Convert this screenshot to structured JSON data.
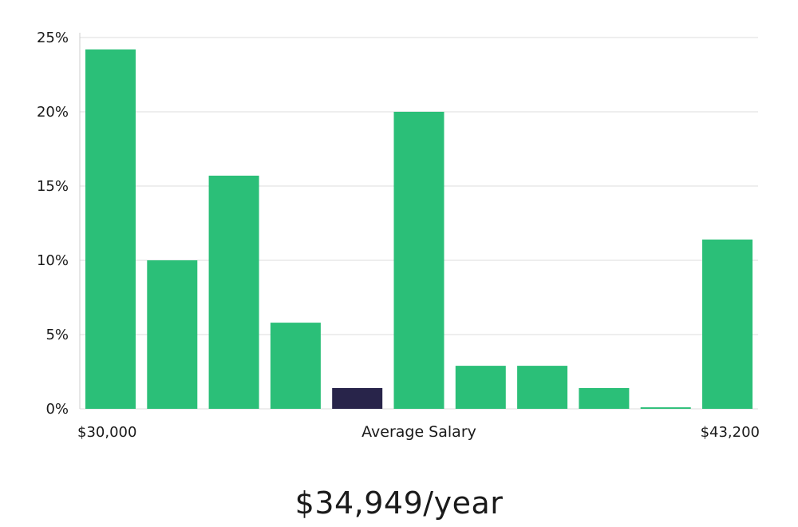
{
  "chart_data": {
    "type": "bar",
    "title": "",
    "xlabel": "Average Salary",
    "ylabel": "",
    "ylim": [
      0,
      25
    ],
    "yticks": [
      0,
      5,
      10,
      15,
      20,
      25
    ],
    "ytick_labels": [
      "0%",
      "5%",
      "10%",
      "15%",
      "20%",
      "25%"
    ],
    "x_min_label": "$30,000",
    "x_max_label": "$43,200",
    "grid": true,
    "values": [
      24.2,
      10.0,
      15.7,
      5.8,
      1.4,
      20.0,
      2.9,
      2.9,
      1.4,
      0.1,
      11.4
    ],
    "highlight_index": 4,
    "colors": {
      "bar": "#2bbf78",
      "highlight": "#28244a",
      "grid": "#dddddd",
      "axis": "#cccccc"
    }
  },
  "summary": {
    "salary_text": "$34,949/year"
  }
}
